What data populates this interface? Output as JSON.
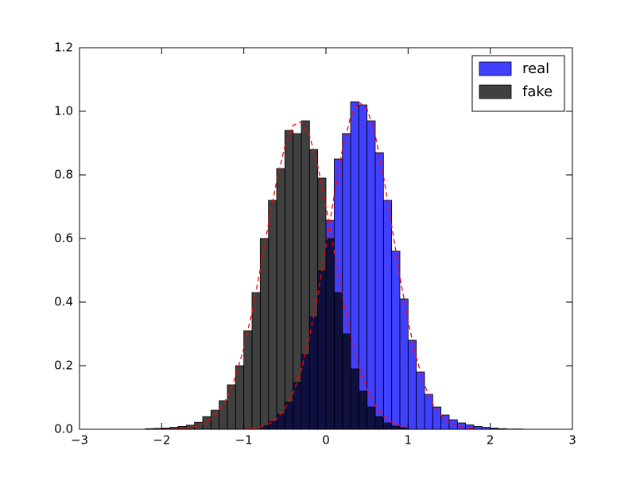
{
  "chart_data": {
    "type": "histogram",
    "xlim": [
      -3,
      3
    ],
    "ylim": [
      0,
      1.2
    ],
    "xticks": [
      {
        "value": -3,
        "label": "−3"
      },
      {
        "value": -2,
        "label": "−2"
      },
      {
        "value": -1,
        "label": "−1"
      },
      0,
      1,
      2,
      3
    ],
    "yticks": [
      {
        "value": 0,
        "label": "0.0"
      },
      {
        "value": 0.2,
        "label": "0.2"
      },
      {
        "value": 0.4,
        "label": "0.4"
      },
      {
        "value": 0.6,
        "label": "0.6"
      },
      {
        "value": 0.8,
        "label": "0.8"
      },
      {
        "value": 1.0,
        "label": "1.0"
      },
      {
        "value": 1.2,
        "label": "1.2"
      }
    ],
    "grid": false,
    "legend": "upper right",
    "alpha": 0.75,
    "series": [
      {
        "name": "real",
        "color": "#0000ff",
        "bins": [
          -0.8,
          -0.7,
          -0.6,
          -0.5,
          -0.4,
          -0.3,
          -0.2,
          -0.1,
          0.0,
          0.1,
          0.2,
          0.3,
          0.4,
          0.5,
          0.6,
          0.7,
          0.8,
          0.9,
          1.0,
          1.1,
          1.2,
          1.3,
          1.4,
          1.5,
          1.6,
          1.7,
          1.8,
          1.9,
          2.0,
          2.1,
          2.2,
          2.3,
          2.4
        ],
        "values": [
          0.011,
          0.024,
          0.047,
          0.085,
          0.147,
          0.235,
          0.353,
          0.498,
          0.657,
          0.85,
          0.93,
          1.03,
          1.02,
          0.97,
          0.87,
          0.72,
          0.56,
          0.41,
          0.28,
          0.18,
          0.11,
          0.07,
          0.045,
          0.03,
          0.02,
          0.014,
          0.009,
          0.006,
          0.004,
          0.002,
          0.001,
          0.001
        ]
      },
      {
        "name": "fake",
        "color": "#000000",
        "bins": [
          -2.2,
          -2.1,
          -2.0,
          -1.9,
          -1.8,
          -1.7,
          -1.6,
          -1.5,
          -1.4,
          -1.3,
          -1.2,
          -1.1,
          -1.0,
          -0.9,
          -0.8,
          -0.7,
          -0.6,
          -0.5,
          -0.4,
          -0.3,
          -0.2,
          -0.1,
          0.0,
          0.1,
          0.2,
          0.3,
          0.4,
          0.5,
          0.6,
          0.7,
          0.8,
          0.9,
          1.0
        ],
        "values": [
          0.002,
          0.003,
          0.004,
          0.006,
          0.009,
          0.013,
          0.022,
          0.04,
          0.06,
          0.09,
          0.14,
          0.2,
          0.31,
          0.43,
          0.6,
          0.72,
          0.82,
          0.94,
          0.93,
          0.97,
          0.88,
          0.79,
          0.6,
          0.43,
          0.3,
          0.19,
          0.12,
          0.07,
          0.04,
          0.02,
          0.01,
          0.005
        ]
      }
    ],
    "curves": [
      {
        "color": "#ff0000",
        "x": [
          -1.0,
          -0.9,
          -0.8,
          -0.7,
          -0.6,
          -0.5,
          -0.4,
          -0.3,
          -0.2,
          -0.1,
          0.0,
          0.1,
          0.2,
          0.3,
          0.4,
          0.5,
          0.6,
          0.7,
          0.8,
          0.9,
          1.0,
          1.1,
          1.2,
          1.3,
          1.4,
          1.5,
          1.6,
          1.7,
          1.8
        ],
        "values": [
          0.001,
          0.003,
          0.008,
          0.017,
          0.034,
          0.064,
          0.113,
          0.188,
          0.292,
          0.423,
          0.577,
          0.735,
          0.879,
          0.983,
          1.029,
          1.008,
          0.925,
          0.796,
          0.641,
          0.48,
          0.34,
          0.225,
          0.139,
          0.08,
          0.044,
          0.022,
          0.0105,
          0.0047,
          0.002
        ]
      },
      {
        "color": "#ff0000",
        "x": [
          -2.0,
          -1.9,
          -1.8,
          -1.7,
          -1.6,
          -1.5,
          -1.4,
          -1.3,
          -1.2,
          -1.1,
          -1.0,
          -0.9,
          -0.8,
          -0.7,
          -0.6,
          -0.5,
          -0.4,
          -0.3,
          -0.2,
          -0.1,
          0.0,
          0.1,
          0.2,
          0.3,
          0.4,
          0.5,
          0.6,
          0.7,
          0.8,
          0.9,
          1.0
        ],
        "values": [
          0.0002,
          0.0006,
          0.0016,
          0.0036,
          0.008,
          0.017,
          0.032,
          0.059,
          0.102,
          0.166,
          0.255,
          0.369,
          0.502,
          0.646,
          0.781,
          0.89,
          0.956,
          0.967,
          0.923,
          0.829,
          0.702,
          0.56,
          0.42,
          0.298,
          0.199,
          0.125,
          0.074,
          0.041,
          0.022,
          0.011,
          0.005
        ]
      }
    ]
  }
}
